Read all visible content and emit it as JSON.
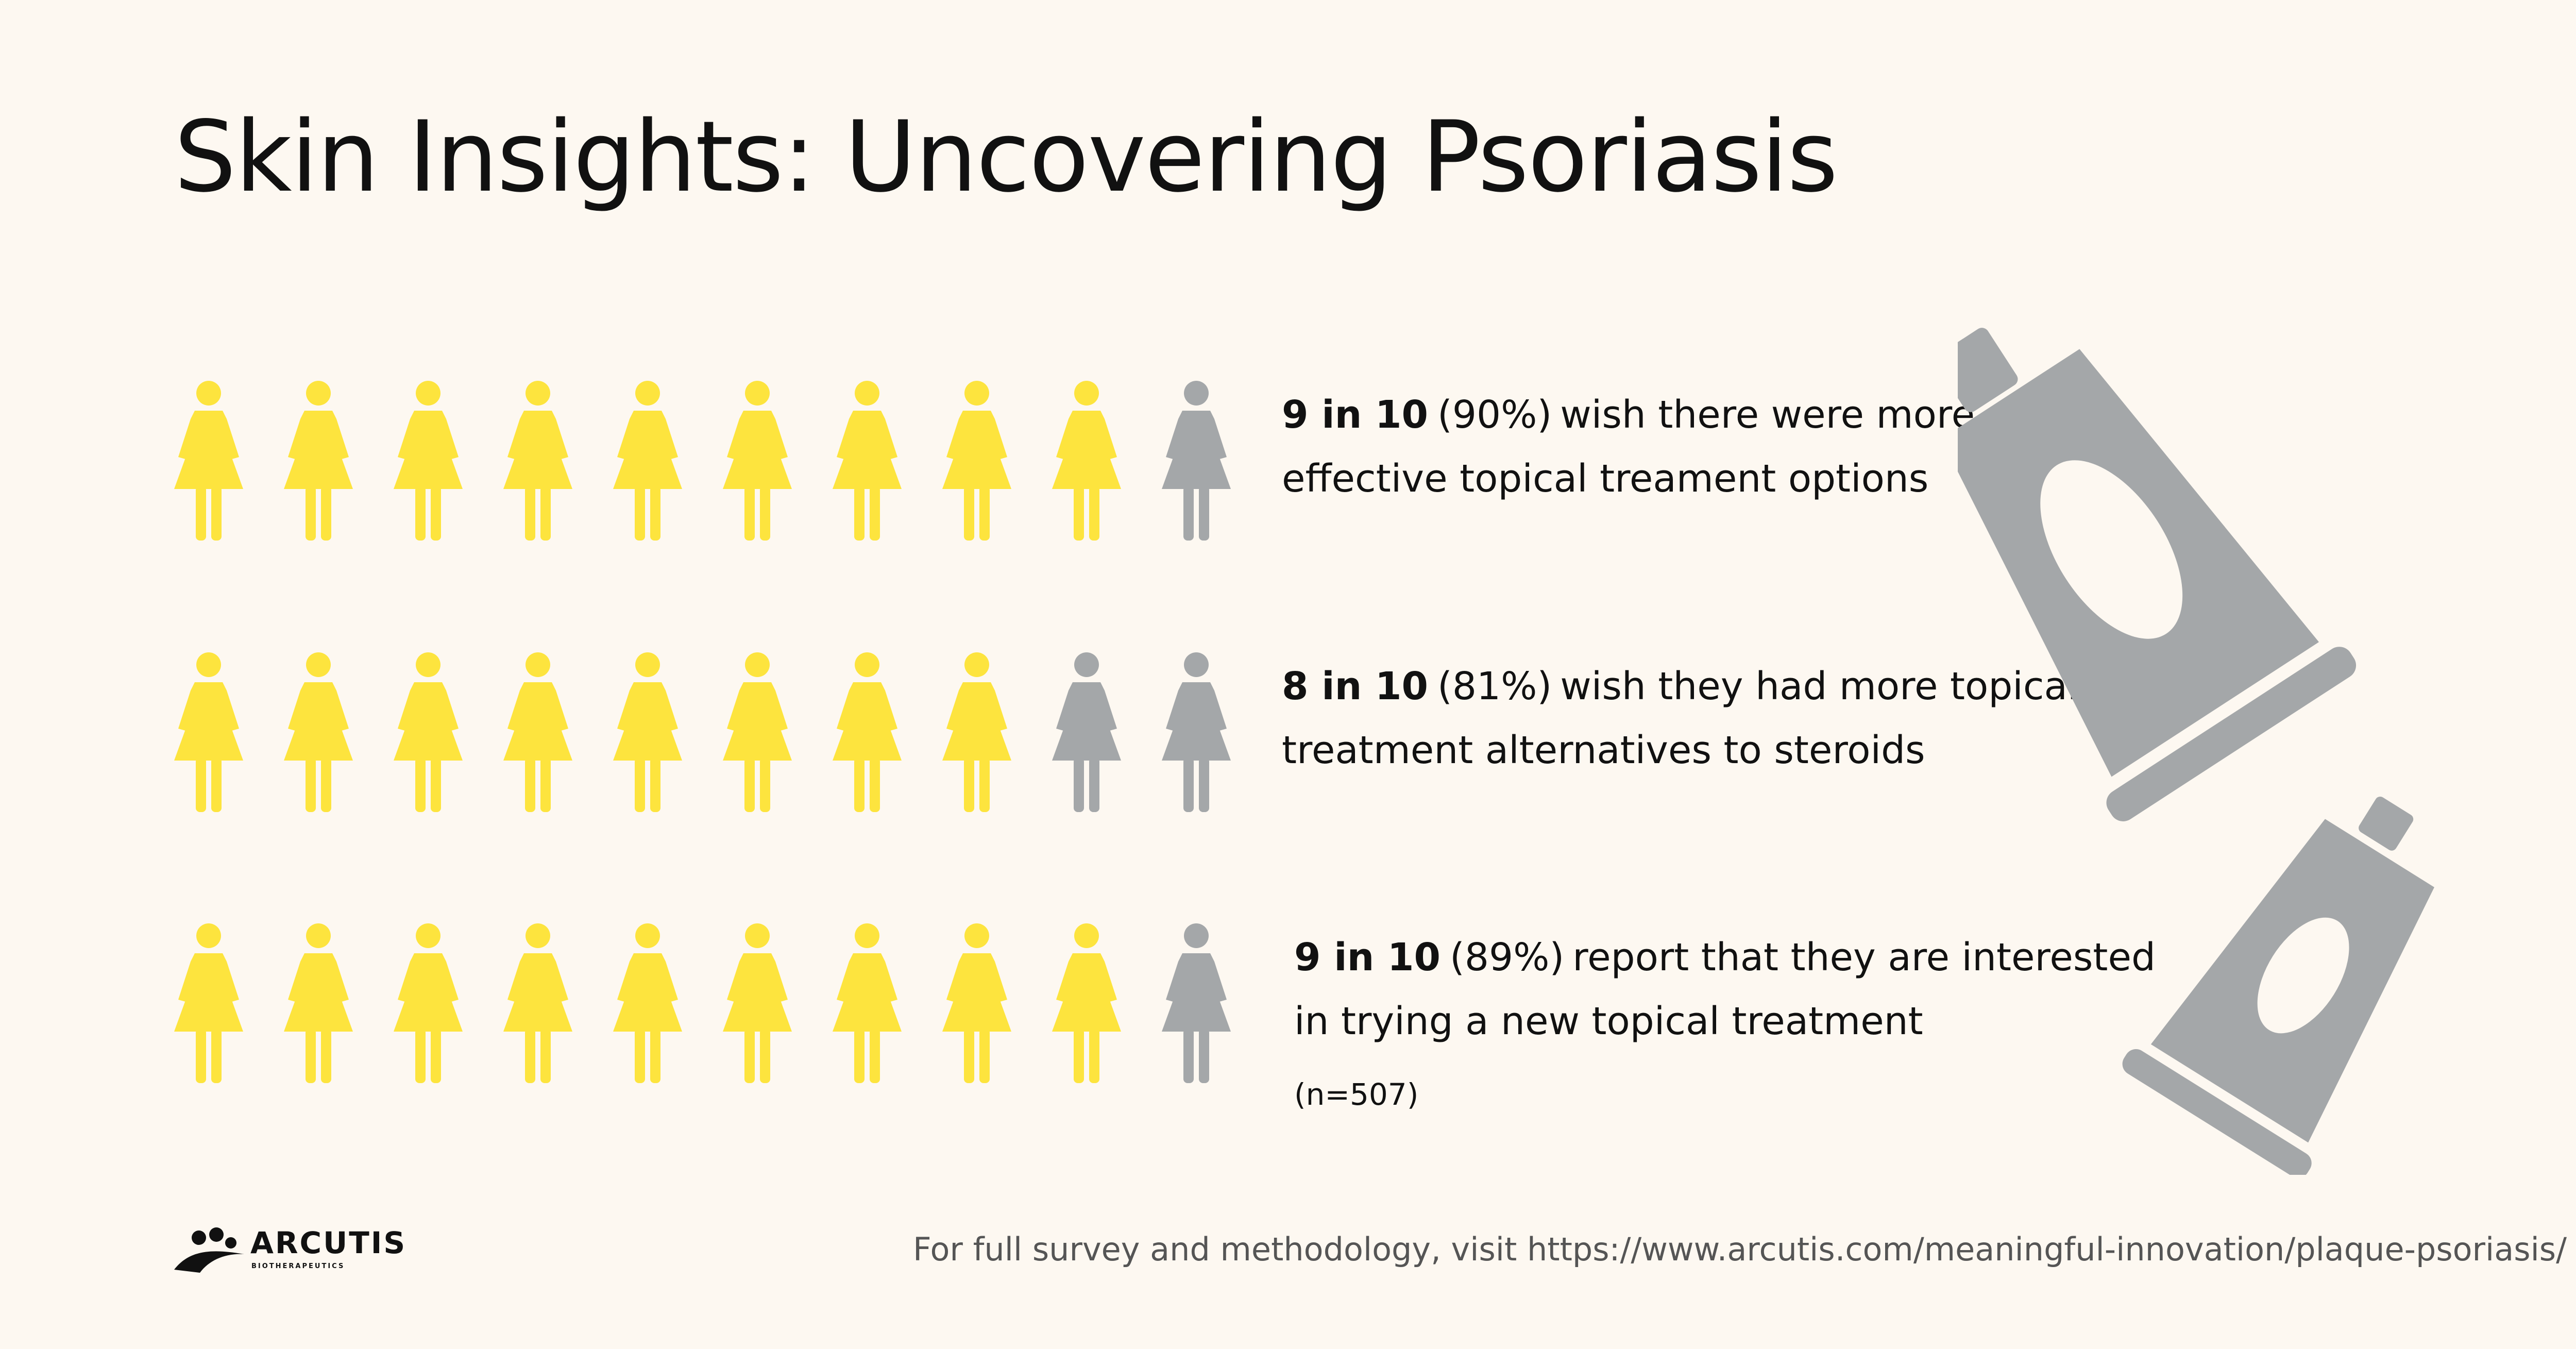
{
  "title": "Skin Insights: Uncovering Psoriasis",
  "colors": {
    "highlight": "#FDE43E",
    "muted": "#A4A7A9",
    "background": "#FDF8F1"
  },
  "stats": [
    {
      "filled": 9,
      "total": 10,
      "bold_text": "9 in 10",
      "percent": "(90%)",
      "line1": "wish there were more",
      "line2": "effective topical treament options"
    },
    {
      "filled": 8,
      "total": 10,
      "bold_text": "8 in 10",
      "percent": "(81%)",
      "line1": "wish they had more topical",
      "line2": "treatment alternatives to steroids"
    },
    {
      "filled": 9,
      "total": 10,
      "bold_text": "9 in 10",
      "percent": "(89%)",
      "line1": "report that they are interested",
      "line2": "in trying a new topical treatment"
    }
  ],
  "sample_note": "(n=507)",
  "footer": "For full survey and methodology, visit https://www.arcutis.com/meaningful-innovation/plaque-psoriasis/",
  "logo": {
    "name": "ARCUTIS",
    "tagline": "BIOTHERAPEUTICS"
  },
  "icons": {
    "person": "woman-icon",
    "tube": "ointment-tube-icon"
  }
}
